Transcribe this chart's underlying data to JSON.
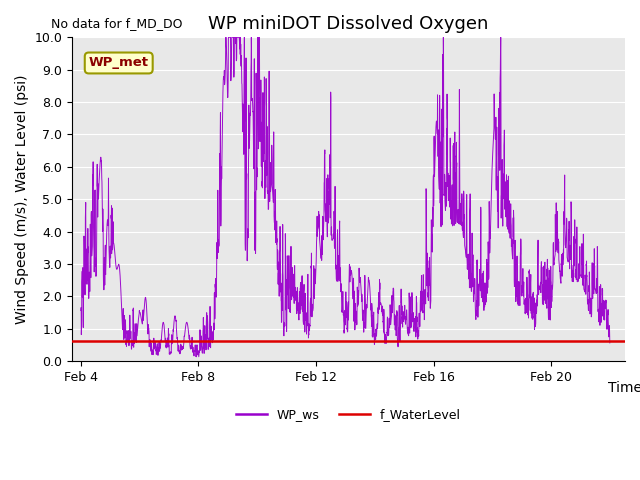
{
  "title": "WP miniDOT Dissolved Oxygen",
  "no_data_label": "No data for f_MD_DO",
  "ylabel": "Wind Speed (m/s), Water Level (psi)",
  "xlabel": "Time",
  "ylim": [
    0.0,
    10.0
  ],
  "yticks": [
    0.0,
    1.0,
    2.0,
    3.0,
    4.0,
    5.0,
    6.0,
    7.0,
    8.0,
    9.0,
    10.0
  ],
  "xtick_labels": [
    "Feb 4",
    "Feb 8",
    "Feb 12",
    "Feb 16",
    "Feb 20"
  ],
  "wp_met_label": "WP_met",
  "wp_met_box_facecolor": "#ffffcc",
  "wp_met_box_edgecolor": "#999900",
  "wp_met_text_color": "#8B0000",
  "wp_ws_color": "#9900cc",
  "f_waterlevel_color": "#dd0000",
  "f_waterlevel_value": 0.62,
  "legend_ws_label": "WP_ws",
  "legend_wl_label": "f_WaterLevel",
  "background_color": "#e8e8e8",
  "title_fontsize": 13,
  "axis_fontsize": 10
}
